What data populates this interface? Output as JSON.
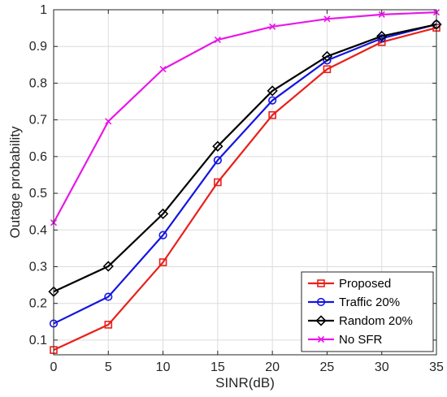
{
  "chart_data": {
    "type": "line",
    "xlabel": "SINR(dB)",
    "ylabel": "Outage probability",
    "xlim": [
      0,
      35
    ],
    "ylim": [
      0.06,
      1
    ],
    "xticks": [
      0,
      5,
      10,
      15,
      20,
      25,
      30,
      35
    ],
    "yticks": [
      0.1,
      0.2,
      0.3,
      0.4,
      0.5,
      0.6,
      0.7,
      0.8,
      0.9,
      1
    ],
    "xtick_labels": [
      "0",
      "5",
      "10",
      "15",
      "20",
      "25",
      "30",
      "35"
    ],
    "ytick_labels": [
      "0.1",
      "0.2",
      "0.3",
      "0.4",
      "0.5",
      "0.6",
      "0.7",
      "0.8",
      "0.9",
      "1"
    ],
    "grid": true,
    "legend_position": "bottom-right",
    "x": [
      0,
      5,
      10,
      15,
      20,
      25,
      30,
      35
    ],
    "series": [
      {
        "name": "Proposed",
        "color": "#e8201b",
        "marker": "square",
        "values": [
          0.073,
          0.142,
          0.312,
          0.53,
          0.713,
          0.838,
          0.912,
          0.951
        ]
      },
      {
        "name": "Traffic 20%",
        "color": "#1515e0",
        "marker": "circle",
        "values": [
          0.145,
          0.218,
          0.386,
          0.59,
          0.753,
          0.862,
          0.922,
          0.96
        ]
      },
      {
        "name": "Random 20%",
        "color": "#000000",
        "marker": "diamond",
        "values": [
          0.232,
          0.301,
          0.444,
          0.628,
          0.779,
          0.873,
          0.928,
          0.96
        ]
      },
      {
        "name": "No SFR",
        "color": "#e817e8",
        "marker": "x",
        "values": [
          0.42,
          0.696,
          0.838,
          0.918,
          0.954,
          0.975,
          0.987,
          0.993
        ]
      }
    ]
  }
}
